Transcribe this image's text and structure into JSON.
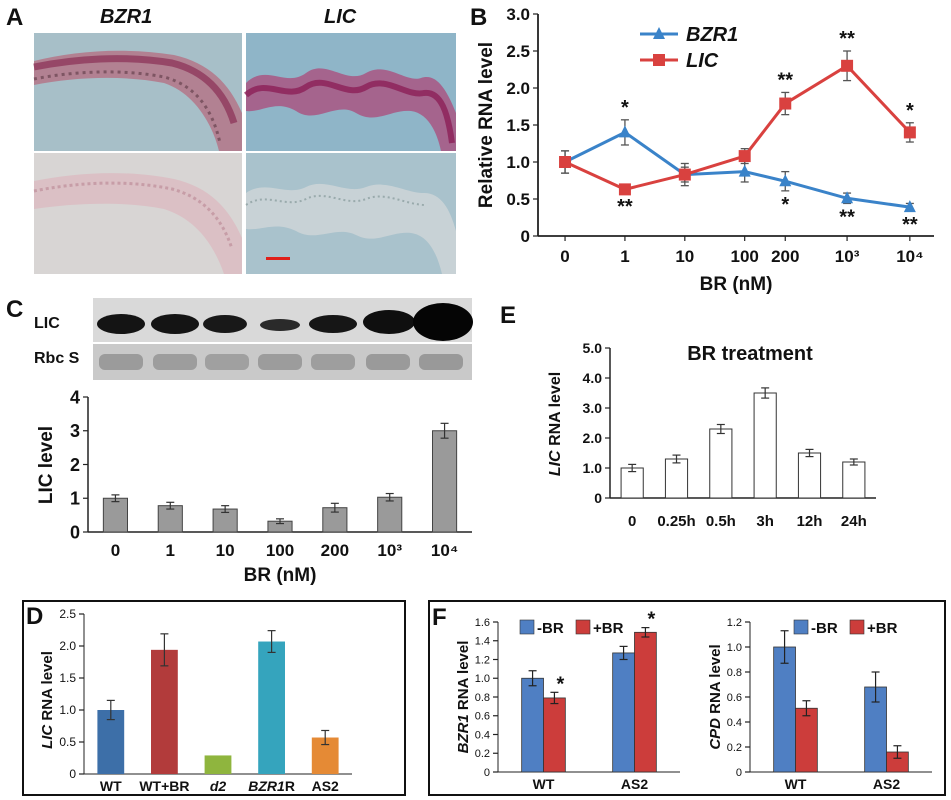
{
  "figure": {
    "panel_labels": {
      "A": "A",
      "B": "B",
      "C": "C",
      "D": "D",
      "E": "E",
      "F": "F"
    }
  },
  "panel_a": {
    "col_titles": [
      "BZR1",
      "LIC"
    ],
    "scale_bar_color": "#e0201a"
  },
  "panel_c_blot": {
    "row_labels": [
      "LIC",
      "Rbc S"
    ]
  },
  "chart_data": [
    {
      "id": "B",
      "type": "line",
      "categories": [
        "0",
        "1",
        "10",
        "100",
        "200",
        "10³",
        "10⁴"
      ],
      "series": [
        {
          "name": "BZR1",
          "color": "#3a83c9",
          "marker": "triangle",
          "values": [
            1.0,
            1.4,
            0.83,
            0.87,
            0.74,
            0.51,
            0.39
          ],
          "errors": [
            0.15,
            0.17,
            0.15,
            0.14,
            0.13,
            0.07,
            0.05
          ],
          "annotations": [
            "",
            "*",
            "",
            "",
            "*",
            "**",
            "**"
          ]
        },
        {
          "name": "LIC",
          "color": "#d9413f",
          "marker": "square",
          "values": [
            1.0,
            0.63,
            0.83,
            1.08,
            1.79,
            2.3,
            1.4
          ],
          "errors": [
            0.15,
            0.05,
            0.1,
            0.1,
            0.15,
            0.2,
            0.13
          ],
          "annotations": [
            "",
            "**",
            "",
            "",
            "**",
            "**",
            "*"
          ]
        }
      ],
      "xlabel": "BR (nM)",
      "ylabel": "Relative RNA level",
      "ylim": [
        0,
        3
      ],
      "yticks": [
        "0",
        "0.5",
        "1.0",
        "1.5",
        "2.0",
        "2.5",
        "3.0"
      ],
      "legend": "top-left"
    },
    {
      "id": "C",
      "type": "bar",
      "categories": [
        "0",
        "1",
        "10",
        "100",
        "200",
        "10³",
        "10⁴"
      ],
      "values": [
        1.0,
        0.78,
        0.68,
        0.32,
        0.72,
        1.03,
        3.0
      ],
      "errors": [
        0.1,
        0.1,
        0.1,
        0.07,
        0.13,
        0.11,
        0.22
      ],
      "xlabel": "BR (nM)",
      "ylabel": "LIC level",
      "ylim": [
        0,
        4
      ],
      "yticks": [
        "0",
        "1",
        "2",
        "3",
        "4"
      ],
      "color": "#9a9a9a"
    },
    {
      "id": "E",
      "type": "bar",
      "title": "BR treatment",
      "categories": [
        "0",
        "0.25h",
        "0.5h",
        "3h",
        "12h",
        "24h"
      ],
      "values": [
        1.0,
        1.3,
        2.3,
        3.5,
        1.5,
        1.2
      ],
      "errors": [
        0.12,
        0.13,
        0.15,
        0.17,
        0.12,
        0.1
      ],
      "ylabel_italic": "LIC",
      "ylabel_rest": " RNA level",
      "ylim": [
        0,
        5
      ],
      "yticks": [
        "0",
        "1.0",
        "2.0",
        "3.0",
        "4.0",
        "5.0"
      ],
      "color": "#ffffff"
    },
    {
      "id": "D",
      "type": "bar",
      "categories": [
        "WT",
        "WT+BR",
        "d2",
        "BZR1R",
        "AS2"
      ],
      "category_display": [
        {
          "italic": "",
          "plain": "WT"
        },
        {
          "italic": "",
          "plain": "WT+BR"
        },
        {
          "italic": "d2",
          "plain": ""
        },
        {
          "italic": "BZR1",
          "plain": "R"
        },
        {
          "italic": "",
          "plain": "AS2"
        }
      ],
      "values": [
        1.0,
        1.94,
        0.29,
        2.07,
        0.57
      ],
      "errors": [
        0.15,
        0.25,
        0.0,
        0.17,
        0.11
      ],
      "colors": [
        "#3d6fa8",
        "#b23b3b",
        "#8fb53e",
        "#35a4bd",
        "#e58a35"
      ],
      "ylabel_italic": "LIC",
      "ylabel_rest": " RNA level",
      "ylim": [
        0,
        2.5
      ],
      "yticks": [
        "0",
        "0.5",
        "1.0",
        "1.5",
        "2.0",
        "2.5"
      ]
    },
    {
      "id": "F1",
      "type": "bar",
      "categories": [
        "WT",
        "AS2"
      ],
      "series": [
        {
          "name": "-BR",
          "color": "#4f7fc3",
          "values": [
            1.0,
            1.27
          ],
          "errors": [
            0.08,
            0.07
          ],
          "annotations": [
            "",
            ""
          ]
        },
        {
          "name": "+BR",
          "color": "#cc3d3b",
          "values": [
            0.79,
            1.49
          ],
          "errors": [
            0.06,
            0.05
          ],
          "annotations": [
            "*",
            "*"
          ]
        }
      ],
      "ylabel_italic": "BZR1",
      "ylabel_rest": " RNA level",
      "ylim": [
        0,
        1.6
      ],
      "yticks": [
        "0",
        "0.2",
        "0.4",
        "0.6",
        "0.8",
        "1.0",
        "1.2",
        "1.4",
        "1.6"
      ],
      "legend": "top-left"
    },
    {
      "id": "F2",
      "type": "bar",
      "categories": [
        "WT",
        "AS2"
      ],
      "series": [
        {
          "name": "-BR",
          "color": "#4f7fc3",
          "values": [
            1.0,
            0.68
          ],
          "errors": [
            0.13,
            0.12
          ],
          "annotations": [
            "",
            ""
          ]
        },
        {
          "name": "+BR",
          "color": "#cc3d3b",
          "values": [
            0.51,
            0.16
          ],
          "errors": [
            0.06,
            0.05
          ],
          "annotations": [
            "",
            ""
          ]
        }
      ],
      "ylabel_italic": "CPD",
      "ylabel_rest": " RNA level",
      "ylim": [
        0,
        1.2
      ],
      "yticks": [
        "0",
        "0.2",
        "0.4",
        "0.6",
        "0.8",
        "1.0",
        "1.2"
      ],
      "legend": "top-right"
    }
  ]
}
